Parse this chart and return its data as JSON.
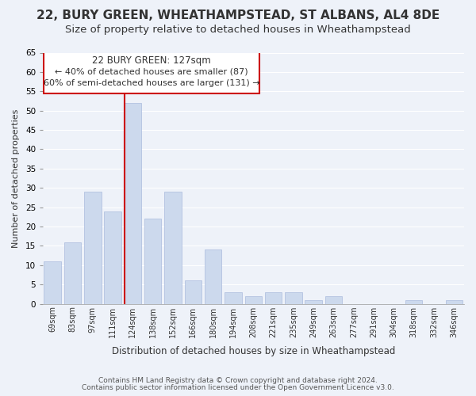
{
  "title": "22, BURY GREEN, WHEATHAMPSTEAD, ST ALBANS, AL4 8DE",
  "subtitle": "Size of property relative to detached houses in Wheathampstead",
  "xlabel": "Distribution of detached houses by size in Wheathampstead",
  "ylabel": "Number of detached properties",
  "categories": [
    "69sqm",
    "83sqm",
    "97sqm",
    "111sqm",
    "124sqm",
    "138sqm",
    "152sqm",
    "166sqm",
    "180sqm",
    "194sqm",
    "208sqm",
    "221sqm",
    "235sqm",
    "249sqm",
    "263sqm",
    "277sqm",
    "291sqm",
    "304sqm",
    "318sqm",
    "332sqm",
    "346sqm"
  ],
  "values": [
    11,
    16,
    29,
    24,
    52,
    22,
    29,
    6,
    14,
    3,
    2,
    3,
    3,
    1,
    2,
    0,
    0,
    0,
    1,
    0,
    1
  ],
  "bar_color": "#ccd9ed",
  "red_line_index": 4,
  "red_line_color": "#cc0000",
  "ylim": [
    0,
    65
  ],
  "yticks": [
    0,
    5,
    10,
    15,
    20,
    25,
    30,
    35,
    40,
    45,
    50,
    55,
    60,
    65
  ],
  "annotation_title": "22 BURY GREEN: 127sqm",
  "annotation_line1": "← 40% of detached houses are smaller (87)",
  "annotation_line2": "60% of semi-detached houses are larger (131) →",
  "annotation_border_color": "#cc0000",
  "footer_line1": "Contains HM Land Registry data © Crown copyright and database right 2024.",
  "footer_line2": "Contains public sector information licensed under the Open Government Licence v3.0.",
  "background_color": "#eef2f9",
  "grid_color": "#ffffff",
  "title_fontsize": 11,
  "subtitle_fontsize": 9.5
}
